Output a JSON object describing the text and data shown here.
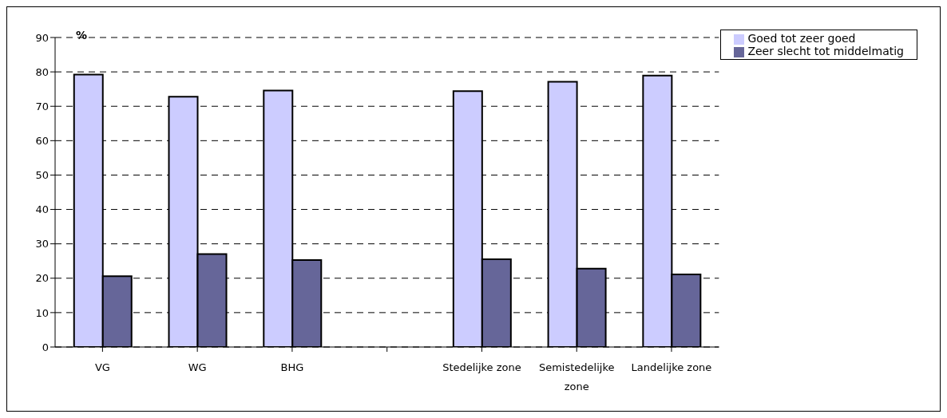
{
  "chart_data": {
    "type": "bar",
    "ylabel": "%",
    "categories": [
      "VG",
      "WG",
      "BHG",
      null,
      "Stedelijke zone",
      "Semistedelijke zone",
      "Landelijke zone"
    ],
    "series": [
      {
        "name": "Goed tot zeer goed",
        "color": "#ccccff",
        "values": [
          79.2,
          72.8,
          74.6,
          null,
          74.4,
          77.1,
          78.9
        ]
      },
      {
        "name": "Zeer slecht tot middelmatig",
        "color": "#666699",
        "values": [
          20.6,
          27.0,
          25.3,
          null,
          25.5,
          22.8,
          21.1
        ]
      }
    ],
    "ylim": [
      0,
      90
    ],
    "yticks": [
      0,
      10,
      20,
      30,
      40,
      50,
      60,
      70,
      80,
      90
    ],
    "grid": "y",
    "legend": "top right"
  }
}
